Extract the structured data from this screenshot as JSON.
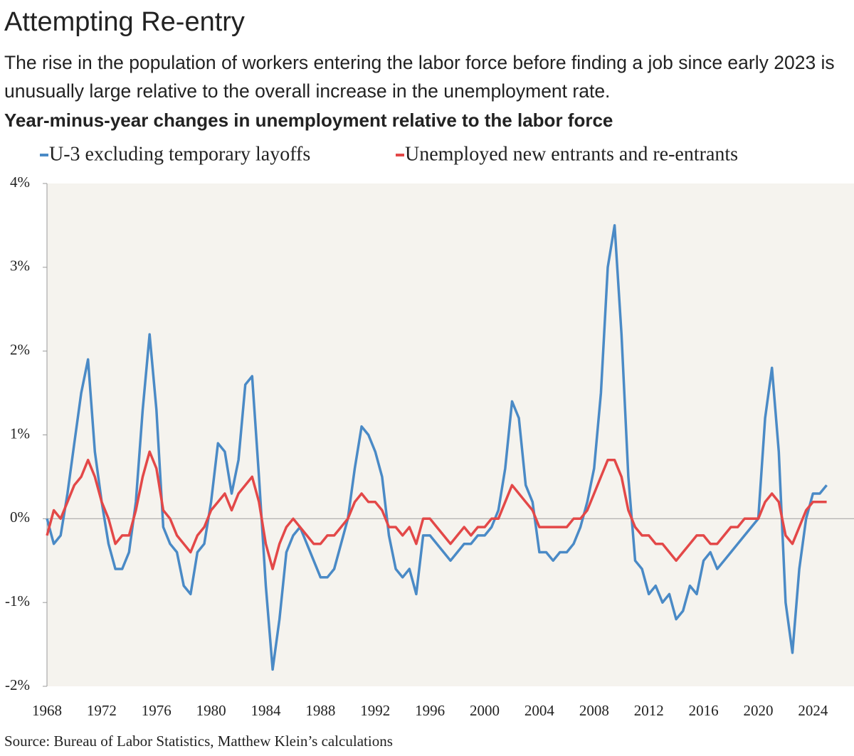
{
  "chart_data": {
    "type": "line",
    "title": "Attempting Re-entry",
    "subtitle": "The rise in the population of workers entering the labor force before finding a job since early 2023 is unusually large relative to the overall increase in the unemployment rate.",
    "heading": "Year-minus-year changes in unemployment relative to the labor force",
    "source": "Source: Bureau of Labor Statistics, Matthew Klein’s calculations",
    "x": [
      1968.0,
      1968.5,
      1969.0,
      1969.5,
      1970.0,
      1970.5,
      1971.0,
      1971.5,
      1972.0,
      1972.5,
      1973.0,
      1973.5,
      1974.0,
      1974.5,
      1975.0,
      1975.5,
      1976.0,
      1976.5,
      1977.0,
      1977.5,
      1978.0,
      1978.5,
      1979.0,
      1979.5,
      1980.0,
      1980.5,
      1981.0,
      1981.5,
      1982.0,
      1982.5,
      1983.0,
      1983.5,
      1984.0,
      1984.5,
      1985.0,
      1985.5,
      1986.0,
      1986.5,
      1987.0,
      1987.5,
      1988.0,
      1988.5,
      1989.0,
      1989.5,
      1990.0,
      1990.5,
      1991.0,
      1991.5,
      1992.0,
      1992.5,
      1993.0,
      1993.5,
      1994.0,
      1994.5,
      1995.0,
      1995.5,
      1996.0,
      1996.5,
      1997.0,
      1997.5,
      1998.0,
      1998.5,
      1999.0,
      1999.5,
      2000.0,
      2000.5,
      2001.0,
      2001.5,
      2002.0,
      2002.5,
      2003.0,
      2003.5,
      2004.0,
      2004.5,
      2005.0,
      2005.5,
      2006.0,
      2006.5,
      2007.0,
      2007.5,
      2008.0,
      2008.5,
      2009.0,
      2009.5,
      2010.0,
      2010.5,
      2011.0,
      2011.5,
      2012.0,
      2012.5,
      2013.0,
      2013.5,
      2014.0,
      2014.5,
      2015.0,
      2015.5,
      2016.0,
      2016.5,
      2017.0,
      2017.5,
      2018.0,
      2018.5,
      2019.0,
      2019.5,
      2020.0,
      2020.5,
      2021.0,
      2021.5,
      2022.0,
      2022.5,
      2023.0,
      2023.5,
      2024.0,
      2024.5,
      2025.0
    ],
    "series": [
      {
        "name": "U-3 excluding temporary layoffs",
        "color": "#4a8ac6",
        "values": [
          0,
          -0.3,
          -0.2,
          0.3,
          0.9,
          1.5,
          1.9,
          0.8,
          0.2,
          -0.3,
          -0.6,
          -0.6,
          -0.4,
          0.2,
          1.3,
          2.2,
          1.3,
          -0.1,
          -0.3,
          -0.4,
          -0.8,
          -0.9,
          -0.4,
          -0.3,
          0.2,
          0.9,
          0.8,
          0.3,
          0.7,
          1.6,
          1.7,
          0.5,
          -0.8,
          -1.8,
          -1.2,
          -0.4,
          -0.2,
          -0.1,
          -0.3,
          -0.5,
          -0.7,
          -0.7,
          -0.6,
          -0.3,
          0,
          0.6,
          1.1,
          1.0,
          0.8,
          0.5,
          -0.2,
          -0.6,
          -0.7,
          -0.6,
          -0.9,
          -0.2,
          -0.2,
          -0.3,
          -0.4,
          -0.5,
          -0.4,
          -0.3,
          -0.3,
          -0.2,
          -0.2,
          -0.1,
          0.1,
          0.6,
          1.4,
          1.2,
          0.4,
          0.2,
          -0.4,
          -0.4,
          -0.5,
          -0.4,
          -0.4,
          -0.3,
          -0.1,
          0.2,
          0.6,
          1.5,
          3.0,
          3.5,
          2.2,
          0.5,
          -0.5,
          -0.6,
          -0.9,
          -0.8,
          -1.0,
          -0.9,
          -1.2,
          -1.1,
          -0.8,
          -0.9,
          -0.5,
          -0.4,
          -0.6,
          -0.5,
          -0.4,
          -0.3,
          -0.2,
          -0.1,
          0,
          1.2,
          1.8,
          0.8,
          -1.0,
          -1.6,
          -0.6,
          0,
          0.3,
          0.3,
          0.4
        ]
      },
      {
        "name": "Unemployed new entrants and re-entrants",
        "color": "#e34848",
        "values": [
          -0.2,
          0.1,
          0,
          0.2,
          0.4,
          0.5,
          0.7,
          0.5,
          0.2,
          0,
          -0.3,
          -0.2,
          -0.2,
          0.1,
          0.5,
          0.8,
          0.6,
          0.1,
          0,
          -0.2,
          -0.3,
          -0.4,
          -0.2,
          -0.1,
          0.1,
          0.2,
          0.3,
          0.1,
          0.3,
          0.4,
          0.5,
          0.2,
          -0.3,
          -0.6,
          -0.3,
          -0.1,
          0,
          -0.1,
          -0.2,
          -0.3,
          -0.3,
          -0.2,
          -0.2,
          -0.1,
          0,
          0.2,
          0.3,
          0.2,
          0.2,
          0.1,
          -0.1,
          -0.1,
          -0.2,
          -0.1,
          -0.3,
          0,
          0,
          -0.1,
          -0.2,
          -0.3,
          -0.2,
          -0.1,
          -0.2,
          -0.1,
          -0.1,
          0,
          0,
          0.2,
          0.4,
          0.3,
          0.2,
          0.1,
          -0.1,
          -0.1,
          -0.1,
          -0.1,
          -0.1,
          0,
          0,
          0.1,
          0.3,
          0.5,
          0.7,
          0.7,
          0.5,
          0.1,
          -0.1,
          -0.2,
          -0.2,
          -0.3,
          -0.3,
          -0.4,
          -0.5,
          -0.4,
          -0.3,
          -0.2,
          -0.2,
          -0.3,
          -0.3,
          -0.2,
          -0.1,
          -0.1,
          0,
          0,
          0,
          0.2,
          0.3,
          0.2,
          -0.2,
          -0.3,
          -0.1,
          0.1,
          0.2,
          0.2,
          0.2
        ]
      }
    ],
    "xlim": [
      1968,
      2027
    ],
    "xticks": [
      1968,
      1972,
      1976,
      1980,
      1984,
      1988,
      1992,
      1996,
      2000,
      2004,
      2008,
      2012,
      2016,
      2020,
      2024
    ],
    "ylim": [
      -2,
      4
    ],
    "yticks": [
      {
        "value": -2,
        "label": "-2%"
      },
      {
        "value": -1,
        "label": "-1%"
      },
      {
        "value": 0,
        "label": "0%"
      },
      {
        "value": 1,
        "label": "1%"
      },
      {
        "value": 2,
        "label": "2%"
      },
      {
        "value": 3,
        "label": "3%"
      },
      {
        "value": 4,
        "label": "4%"
      }
    ],
    "grid": false
  }
}
